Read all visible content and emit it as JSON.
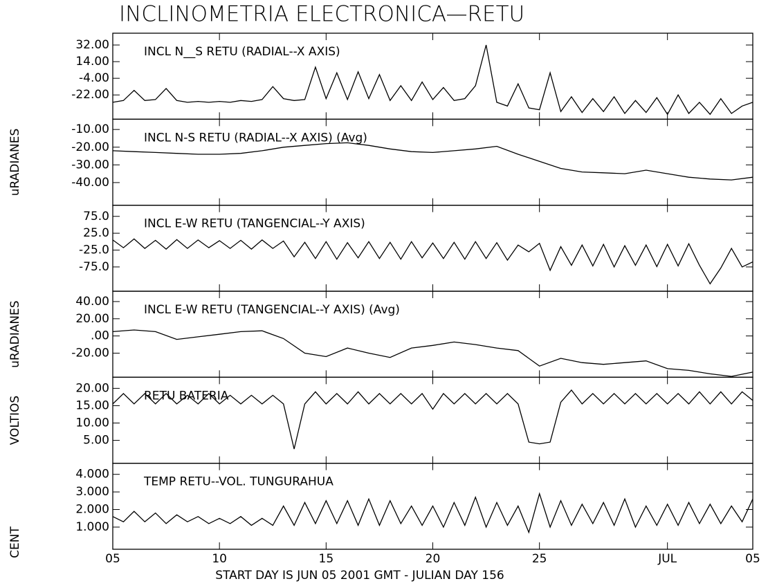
{
  "title": "INCLINOMETRIA ELECTRONICA—RETU",
  "xlabel": "START DAY IS JUN 05 2001 GMT   - JULIAN DAY 156",
  "chart_data": [
    {
      "type": "line",
      "title": "INCL N__S RETU (RADIAL--X AXIS)",
      "color": "#000000",
      "x": [
        156,
        156.5,
        157,
        157.5,
        158,
        158.5,
        159,
        159.5,
        160,
        160.5,
        161,
        161.5,
        162,
        162.5,
        163,
        163.5,
        164,
        164.5,
        165,
        165.5,
        166,
        166.5,
        167,
        167.5,
        168,
        168.5,
        169,
        169.5,
        170,
        170.5,
        171,
        171.5,
        172,
        172.5,
        173,
        173.5,
        174,
        174.5,
        175,
        175.5,
        176,
        176.5,
        177,
        177.5,
        178,
        178.5,
        179,
        179.5,
        180,
        180.5,
        181,
        181.5,
        182,
        182.5,
        183,
        183.5,
        184,
        184.5,
        185,
        185.5,
        186
      ],
      "values": [
        -30,
        -28,
        -17,
        -28,
        -27,
        -15,
        -28,
        -30,
        -29,
        -30,
        -29,
        -30,
        -28,
        -29,
        -27,
        -13,
        -26,
        -28,
        -27,
        8,
        -26,
        2,
        -27,
        3,
        -26,
        0,
        -28,
        -12,
        -28,
        -8,
        -27,
        -14,
        -28,
        -26,
        -12,
        32,
        -30,
        -34,
        -10,
        -36,
        -38,
        2,
        -40,
        -24,
        -41,
        -26,
        -40,
        -24,
        -42,
        -28,
        -41,
        -25,
        -43,
        -22,
        -42,
        -30,
        -43,
        -26,
        -42,
        -34,
        -30
      ],
      "ylim": [
        -48.25,
        44.75
      ],
      "yticks": [
        {
          "value": 32,
          "label": "32.00"
        },
        {
          "value": 14,
          "label": "14.00"
        },
        {
          "value": -4,
          "label": "-4.00"
        },
        {
          "value": -22,
          "label": "-22.00"
        }
      ]
    },
    {
      "type": "line",
      "title": "INCL N-S RETU (RADIAL--X AXIS) (Avg)",
      "color": "#000000",
      "ylabel": "uRADIANES",
      "x": [
        156,
        157,
        158,
        159,
        160,
        161,
        162,
        163,
        164,
        165,
        166,
        167,
        168,
        169,
        170,
        171,
        172,
        173,
        174,
        175,
        176,
        177,
        178,
        179,
        180,
        181,
        182,
        183,
        184,
        185,
        186
      ],
      "values": [
        -22,
        -22.5,
        -23,
        -23.5,
        -24,
        -24,
        -23.5,
        -22,
        -20,
        -19,
        -18,
        -17.5,
        -19,
        -21,
        -22.5,
        -23,
        -22,
        -21,
        -19.5,
        -24,
        -28,
        -32,
        -34,
        -34.5,
        -35,
        -33,
        -35,
        -37,
        -38,
        -38.5,
        -37
      ],
      "ylim": [
        -52.8,
        -4.2
      ],
      "yticks": [
        {
          "value": -10,
          "label": "-10.00"
        },
        {
          "value": -20,
          "label": "-20.00"
        },
        {
          "value": -30,
          "label": "-30.00"
        },
        {
          "value": -40,
          "label": "-40.00"
        }
      ]
    },
    {
      "type": "line",
      "title": "INCL E-W RETU (TANGENCIAL--Y AXIS)",
      "color": "#000000",
      "x": [
        156,
        156.5,
        157,
        157.5,
        158,
        158.5,
        159,
        159.5,
        160,
        160.5,
        161,
        161.5,
        162,
        162.5,
        163,
        163.5,
        164,
        164.5,
        165,
        165.5,
        166,
        166.5,
        167,
        167.5,
        168,
        168.5,
        169,
        169.5,
        170,
        170.5,
        171,
        171.5,
        172,
        172.5,
        173,
        173.5,
        174,
        174.5,
        175,
        175.5,
        176,
        176.5,
        177,
        177.5,
        178,
        178.5,
        179,
        179.5,
        180,
        180.5,
        181,
        181.5,
        182,
        182.5,
        183,
        183.5,
        184,
        184.5,
        185,
        185.5,
        186
      ],
      "values": [
        5,
        -18,
        8,
        -20,
        4,
        -22,
        6,
        -20,
        5,
        -18,
        3,
        -20,
        4,
        -22,
        5,
        -20,
        2,
        -45,
        -2,
        -50,
        0,
        -52,
        -3,
        -48,
        0,
        -50,
        -2,
        -52,
        0,
        -48,
        -4,
        -50,
        -2,
        -52,
        0,
        -50,
        -3,
        -55,
        -10,
        -30,
        -5,
        -85,
        -15,
        -70,
        -10,
        -72,
        -8,
        -75,
        -12,
        -70,
        -10,
        -74,
        -8,
        -72,
        -6,
        -70,
        -125,
        -78,
        -20,
        -75,
        -60
      ],
      "ylim": [
        -147,
        108
      ],
      "yticks": [
        {
          "value": 75,
          "label": "75.0"
        },
        {
          "value": 25,
          "label": "25.0"
        },
        {
          "value": -25,
          "label": "-25.0"
        },
        {
          "value": -75,
          "label": "-75.0"
        }
      ]
    },
    {
      "type": "line",
      "title": "INCL E-W RETU (TANGENCIAL--Y AXIS) (Avg)",
      "color": "#000000",
      "ylabel": "uRADIANES",
      "x": [
        156,
        157,
        158,
        159,
        160,
        161,
        162,
        163,
        164,
        165,
        166,
        167,
        168,
        169,
        170,
        171,
        172,
        173,
        174,
        175,
        176,
        177,
        178,
        179,
        180,
        181,
        182,
        183,
        184,
        185,
        186
      ],
      "values": [
        5,
        7,
        5,
        -4,
        -1,
        2,
        5,
        6,
        -3,
        -20,
        -24,
        -14,
        -20,
        -25,
        -14,
        -11,
        -7,
        -10,
        -14,
        -17,
        -35,
        -26,
        -31,
        -33,
        -31,
        -29,
        -38,
        -40,
        -44,
        -47,
        -42
      ],
      "ylim": [
        -48,
        52
      ],
      "yticks": [
        {
          "value": 40,
          "label": "40.00"
        },
        {
          "value": 20,
          "label": "20.00"
        },
        {
          "value": 0,
          "label": ".00"
        },
        {
          "value": -20,
          "label": "-20.00"
        }
      ]
    },
    {
      "type": "line",
      "title": "RETU BATERIA",
      "color": "#000000",
      "ylabel": "VOLTIOS",
      "x": [
        156,
        156.5,
        157,
        157.5,
        158,
        158.5,
        159,
        159.5,
        160,
        160.5,
        161,
        161.5,
        162,
        162.5,
        163,
        163.5,
        164,
        164.5,
        165,
        165.5,
        166,
        166.5,
        167,
        167.5,
        168,
        168.5,
        169,
        169.5,
        170,
        170.5,
        171,
        171.5,
        172,
        172.5,
        173,
        173.5,
        174,
        174.5,
        175,
        175.5,
        176,
        176.5,
        177,
        177.5,
        178,
        178.5,
        179,
        179.5,
        180,
        180.5,
        181,
        181.5,
        182,
        182.5,
        183,
        183.5,
        184,
        184.5,
        185,
        185.5,
        186
      ],
      "values": [
        15.5,
        18.5,
        15.5,
        18.5,
        15.5,
        18.5,
        15.5,
        18,
        15.5,
        18.5,
        15.5,
        18,
        15.5,
        18,
        15.5,
        18,
        15.5,
        2.5,
        15.5,
        19,
        15.5,
        18.5,
        15.5,
        19,
        15.5,
        18.5,
        15.5,
        18.5,
        15.5,
        18.5,
        14,
        18.5,
        15.5,
        18.5,
        15.5,
        18.5,
        15.5,
        18.5,
        15.5,
        4.5,
        4,
        4.5,
        16,
        19.5,
        15.5,
        18.5,
        15.5,
        18.5,
        15.5,
        18.5,
        15.5,
        18.5,
        15.5,
        18.5,
        15.5,
        19,
        15.5,
        19,
        15.5,
        19,
        16.5
      ],
      "ylim": [
        -1.6,
        23.2
      ],
      "yticks": [
        {
          "value": 20,
          "label": "20.00"
        },
        {
          "value": 15,
          "label": "15.00"
        },
        {
          "value": 10,
          "label": "10.00"
        },
        {
          "value": 5,
          "label": "5.00"
        }
      ]
    },
    {
      "type": "line",
      "title": "TEMP RETU--VOL. TUNGURAHUA",
      "color": "#000000",
      "ylabel": "CENT",
      "x": [
        156,
        156.5,
        157,
        157.5,
        158,
        158.5,
        159,
        159.5,
        160,
        160.5,
        161,
        161.5,
        162,
        162.5,
        163,
        163.5,
        164,
        164.5,
        165,
        165.5,
        166,
        166.5,
        167,
        167.5,
        168,
        168.5,
        169,
        169.5,
        170,
        170.5,
        171,
        171.5,
        172,
        172.5,
        173,
        173.5,
        174,
        174.5,
        175,
        175.5,
        176,
        176.5,
        177,
        177.5,
        178,
        178.5,
        179,
        179.5,
        180,
        180.5,
        181,
        181.5,
        182,
        182.5,
        183,
        183.5,
        184,
        184.5,
        185,
        185.5,
        186
      ],
      "values": [
        1.6,
        1.3,
        1.9,
        1.3,
        1.8,
        1.2,
        1.7,
        1.3,
        1.6,
        1.2,
        1.5,
        1.2,
        1.6,
        1.1,
        1.5,
        1.1,
        2.2,
        1.1,
        2.4,
        1.2,
        2.5,
        1.2,
        2.5,
        1.1,
        2.6,
        1.1,
        2.5,
        1.2,
        2.2,
        1.1,
        2.2,
        1.0,
        2.4,
        1.1,
        2.7,
        1.0,
        2.4,
        1.1,
        2.2,
        0.7,
        2.9,
        1.0,
        2.5,
        1.1,
        2.3,
        1.2,
        2.4,
        1.1,
        2.6,
        1.0,
        2.2,
        1.1,
        2.3,
        1.1,
        2.4,
        1.2,
        2.3,
        1.2,
        2.2,
        1.3,
        2.6
      ],
      "ylim": [
        -0.26,
        4.63
      ],
      "yticks": [
        {
          "value": 4,
          "label": "4.000"
        },
        {
          "value": 3,
          "label": "3.000"
        },
        {
          "value": 2,
          "label": "2.000"
        },
        {
          "value": 1,
          "label": "1.000"
        }
      ],
      "xlim": [
        156,
        186
      ],
      "xticks": [
        {
          "value": 156,
          "label": "05"
        },
        {
          "value": 161,
          "label": "10"
        },
        {
          "value": 166,
          "label": "15"
        },
        {
          "value": 171,
          "label": "20"
        },
        {
          "value": 176,
          "label": "25"
        },
        {
          "value": 182,
          "label": "JUL"
        },
        {
          "value": 186,
          "label": "05"
        }
      ]
    }
  ]
}
